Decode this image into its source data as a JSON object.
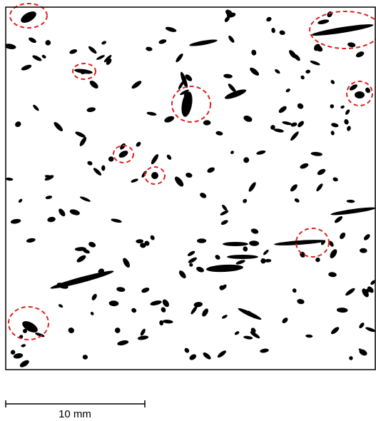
{
  "scale_bar": {
    "label": "10 mm"
  }
}
